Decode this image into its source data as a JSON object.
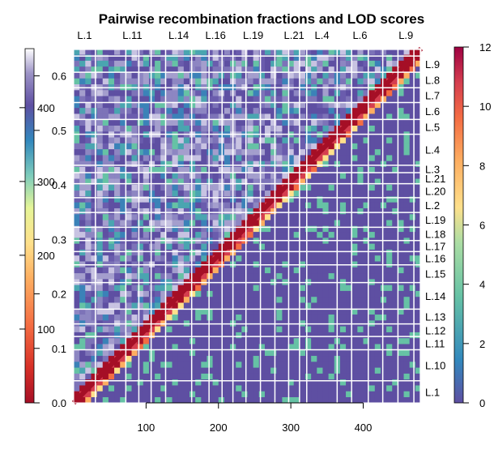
{
  "chart_data": {
    "type": "heatmap",
    "title": "Pairwise recombination fractions and LOD scores",
    "xlabel": "",
    "ylabel": "",
    "x_ticks": [
      100,
      200,
      300,
      400
    ],
    "x_range": [
      0,
      480
    ],
    "top_groups": [
      "L.1",
      "L.11",
      "L.14",
      "L.16",
      "L.19",
      "L.21",
      "L.4",
      "L.6",
      "L.9"
    ],
    "right_groups": [
      "L.9",
      "L.8",
      "L.7",
      "L.6",
      "L.5",
      "L.4",
      "L.3",
      "L.21",
      "L.20",
      "L.2",
      "L.19",
      "L.18",
      "L.17",
      "L.16",
      "L.15",
      "L.14",
      "L.13",
      "L.12",
      "L.11",
      "L.10",
      "L.1"
    ],
    "all_groups_order": [
      "L.1",
      "L.10",
      "L.11",
      "L.12",
      "L.13",
      "L.14",
      "L.15",
      "L.16",
      "L.17",
      "L.18",
      "L.19",
      "L.2",
      "L.20",
      "L.21",
      "L.3",
      "L.4",
      "L.5",
      "L.6",
      "L.7",
      "L.8",
      "L.9"
    ],
    "group_boundaries": [
      30,
      72,
      90,
      107,
      127,
      163,
      187,
      205,
      220,
      238,
      258,
      278,
      297,
      312,
      322,
      364,
      384,
      407,
      427,
      448,
      470,
      479
    ],
    "left_colorbar": {
      "rf_ticks": [
        "0.0",
        "0.1",
        "0.2",
        "0.3",
        "0.4",
        "0.5",
        "0.6"
      ],
      "rf_values": [
        0.0,
        0.1,
        0.2,
        0.3,
        0.4,
        0.5,
        0.6
      ],
      "rf_range": [
        0,
        0.65
      ],
      "count_ticks": [
        "100",
        "200",
        "300",
        "400"
      ],
      "count_values": [
        100,
        200,
        300,
        400
      ],
      "count_range": [
        0,
        480
      ]
    },
    "right_colorbar": {
      "lod_ticks": [
        "0",
        "2",
        "4",
        "6",
        "8",
        "10",
        "12"
      ],
      "lod_values": [
        0,
        2,
        4,
        6,
        8,
        10,
        12
      ],
      "lod_range": [
        0,
        12
      ]
    },
    "colors": {
      "high": "#a50f26",
      "mid_high": "#ef6a3a",
      "mid": "#fef7b2",
      "mid_low": "#5fc1a6",
      "low": "#5e4fa2",
      "very_low": "#ffffff",
      "background": "#5e4fa2",
      "grid": "#ffffff"
    }
  }
}
